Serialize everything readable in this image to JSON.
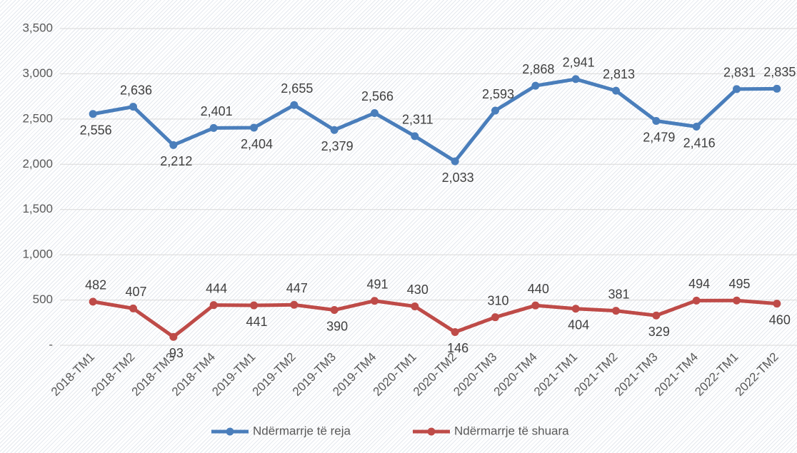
{
  "chart_data": {
    "type": "line",
    "categories": [
      "2018-TM1",
      "2018-TM2",
      "2018-TM3",
      "2018-TM4",
      "2019-TM1",
      "2019-TM2",
      "2019-TM3",
      "2019-TM4",
      "2020-TM1",
      "2020-TM2",
      "2020-TM3",
      "2020-TM4",
      "2021-TM1",
      "2021-TM2",
      "2021-TM3",
      "2021-TM4",
      "2022-TM1",
      "2022-TM2"
    ],
    "series": [
      {
        "name": "Ndërmarrje të reja",
        "color": "#4a7ebb",
        "values": [
          2556,
          2636,
          2212,
          2401,
          2404,
          2655,
          2379,
          2566,
          2311,
          2033,
          2593,
          2868,
          2941,
          2813,
          2479,
          2416,
          2831,
          2835
        ],
        "value_labels": [
          "2,556",
          "2,636",
          "2,212",
          "2,401",
          "2,404",
          "2,655",
          "2,379",
          "2,566",
          "2,311",
          "2,033",
          "2,593",
          "2,868",
          "2,941",
          "2,813",
          "2,479",
          "2,416",
          "2,831",
          "2,835"
        ]
      },
      {
        "name": "Ndërmarrje të shuara",
        "color": "#be4b48",
        "values": [
          482,
          407,
          93,
          444,
          441,
          447,
          390,
          491,
          430,
          146,
          310,
          440,
          404,
          381,
          329,
          494,
          495,
          460
        ]
      }
    ],
    "ylim": [
      0,
      3500
    ],
    "yticks": [
      {
        "value": 0,
        "label": "-"
      },
      500,
      {
        "value": 1000,
        "label": "1,000"
      },
      {
        "value": 1500,
        "label": "1,500"
      },
      {
        "value": 2000,
        "label": "2,000"
      },
      {
        "value": 2500,
        "label": "2,500"
      },
      {
        "value": 3000,
        "label": "3,000"
      },
      {
        "value": 3500,
        "label": "3,500"
      }
    ],
    "grid": true,
    "legend": "bottom"
  }
}
